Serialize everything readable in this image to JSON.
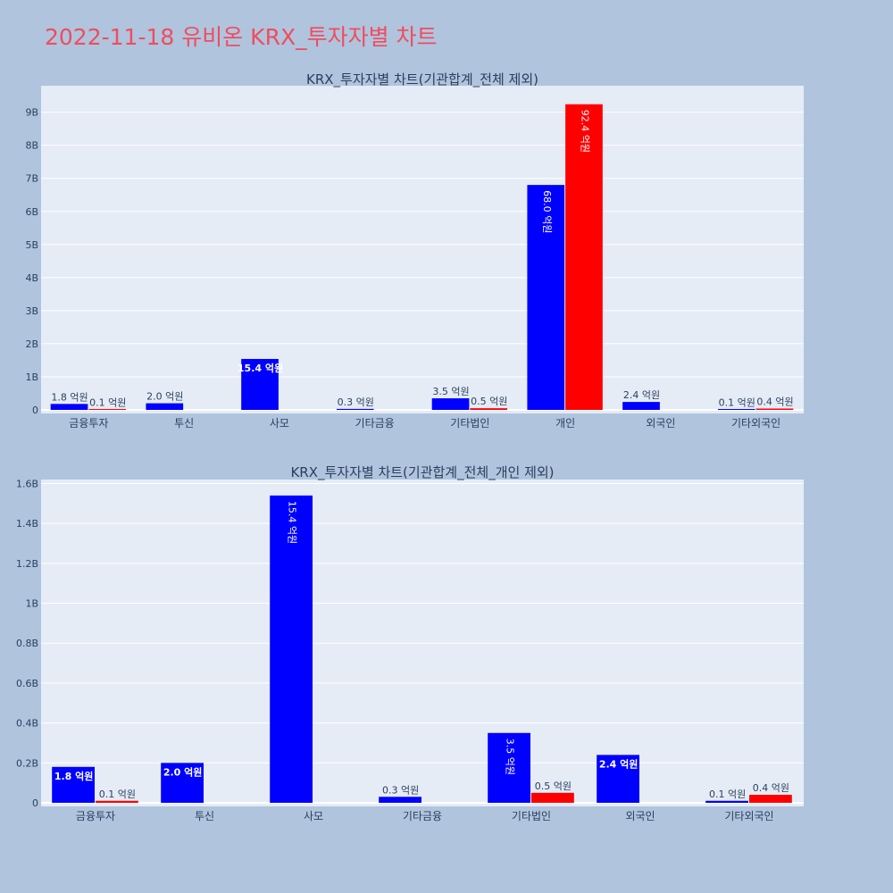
{
  "page": {
    "title": "2022-11-18 유비온 KRX_투자자별 차트",
    "title_color": "#ef4d5e",
    "background": "#b0c4de",
    "plot_background": "#e5ecf6"
  },
  "chart_data": [
    {
      "type": "bar",
      "title": "KRX_투자자별 차트(기관합계_전체 제외)",
      "categories": [
        "금융투자",
        "투신",
        "사모",
        "기타금융",
        "기타법인",
        "개인",
        "외국인",
        "기타외국인"
      ],
      "series": [
        {
          "color": "#0000ff",
          "values": [
            180000000,
            200000000,
            1540000000,
            30000000,
            350000000,
            6800000000,
            240000000,
            10000000
          ],
          "labels": [
            "1.8 억원",
            "2.0 억원",
            "15.4 억원",
            "0.3 억원",
            "3.5 억원",
            "68.0 억원",
            "2.4 억원",
            "0.1 억원"
          ]
        },
        {
          "color": "#ff0000",
          "values": [
            10000000,
            null,
            null,
            null,
            50000000,
            9240000000,
            null,
            40000000
          ],
          "labels": [
            "0.1 억원",
            null,
            null,
            null,
            "0.5 억원",
            "92.4 억원",
            null,
            "0.4 억원"
          ]
        }
      ],
      "yticks": [
        "0",
        "1B",
        "2B",
        "3B",
        "4B",
        "5B",
        "6B",
        "7B",
        "8B",
        "9B"
      ],
      "ylim": [
        0,
        9800000000
      ],
      "grid": true
    },
    {
      "type": "bar",
      "title": "KRX_투자자별 차트(기관합계_전체_개인 제외)",
      "categories": [
        "금융투자",
        "투신",
        "사모",
        "기타금융",
        "기타법인",
        "외국인",
        "기타외국인"
      ],
      "series": [
        {
          "color": "#0000ff",
          "values": [
            180000000,
            200000000,
            1540000000,
            30000000,
            350000000,
            240000000,
            10000000
          ],
          "labels": [
            "1.8 억원",
            "2.0 억원",
            "15.4 억원",
            "0.3 억원",
            "3.5 억원",
            "2.4 억원",
            "0.1 억원"
          ]
        },
        {
          "color": "#ff0000",
          "values": [
            10000000,
            null,
            null,
            null,
            50000000,
            null,
            40000000
          ],
          "labels": [
            "0.1 억원",
            null,
            null,
            null,
            "0.5 억원",
            null,
            "0.4 억원"
          ]
        }
      ],
      "yticks": [
        "0",
        "0.2B",
        "0.4B",
        "0.6B",
        "0.8B",
        "1B",
        "1.2B",
        "1.4B",
        "1.6B"
      ],
      "ylim": [
        0,
        1620000000
      ],
      "grid": true
    }
  ]
}
